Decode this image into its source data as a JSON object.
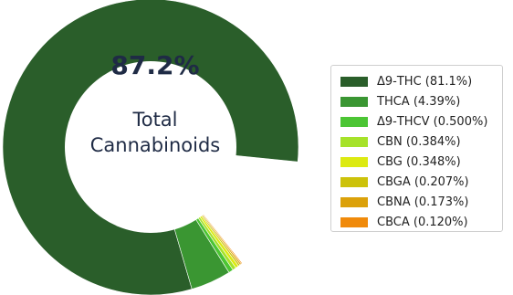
{
  "chart_data": {
    "type": "pie",
    "style": "donut",
    "center": {
      "value": "87.2%",
      "label_line1": "Total",
      "label_line2": "Cannabinoids"
    },
    "legend_position": "right",
    "slices": [
      {
        "name": "Δ9-THC",
        "value": 81.1,
        "legend": "Δ9-THC (81.1%)",
        "color": "#2a5e2a"
      },
      {
        "name": "THCA",
        "value": 4.39,
        "legend": "THCA (4.39%)",
        "color": "#3a9632"
      },
      {
        "name": "Δ9-THCV",
        "value": 0.5,
        "legend": "Δ9-THCV (0.500%)",
        "color": "#4cc534"
      },
      {
        "name": "CBN",
        "value": 0.384,
        "legend": "CBN (0.384%)",
        "color": "#a6e22a"
      },
      {
        "name": "CBG",
        "value": 0.348,
        "legend": "CBG (0.348%)",
        "color": "#dcea12"
      },
      {
        "name": "CBGA",
        "value": 0.207,
        "legend": "CBGA (0.207%)",
        "color": "#ccc20a"
      },
      {
        "name": "CBNA",
        "value": 0.173,
        "legend": "CBNA (0.173%)",
        "color": "#dba10a"
      },
      {
        "name": "CBCA",
        "value": 0.12,
        "legend": "CBCA (0.120%)",
        "color": "#f08a0a"
      }
    ]
  }
}
